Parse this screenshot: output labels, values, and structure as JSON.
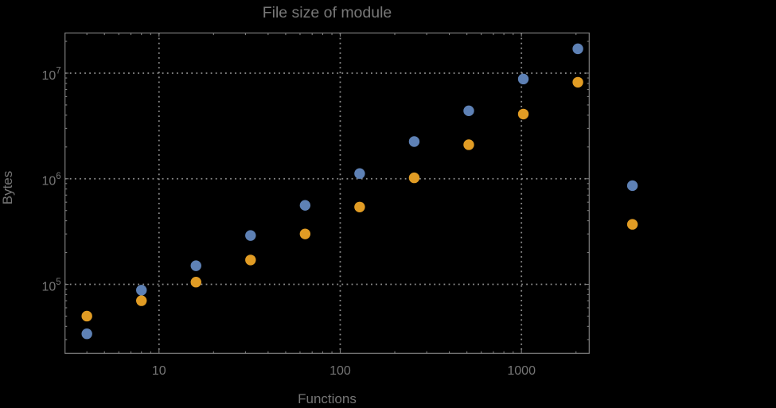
{
  "window": {
    "background": "#000000"
  },
  "chart_data": {
    "type": "scatter",
    "title": "File size of module",
    "xlabel": "Functions",
    "ylabel": "Bytes",
    "x_scale": "log",
    "y_scale": "log",
    "grid": "dotted",
    "legend": "none",
    "x": [
      4,
      8,
      16,
      32,
      64,
      128,
      256,
      512,
      1024,
      2048,
      4096
    ],
    "series": [
      {
        "name": "series-1-blue",
        "color": "#5E81B5",
        "values": [
          34000,
          88000,
          150000,
          290000,
          560000,
          1120000,
          2250000,
          4400000,
          8800000,
          17000000,
          860000
        ]
      },
      {
        "name": "series-2-orange",
        "color": "#E19C24",
        "values": [
          50000,
          70000,
          105000,
          170000,
          300000,
          540000,
          1020000,
          2100000,
          4100000,
          8200000,
          370000
        ]
      }
    ],
    "x_ticks": [
      {
        "v": 10,
        "label": "10"
      },
      {
        "v": 100,
        "label": "100"
      },
      {
        "v": 1000,
        "label": "1000"
      }
    ],
    "y_ticks": [
      {
        "v": 100000,
        "base": "10",
        "exp": "5"
      },
      {
        "v": 1000000,
        "base": "10",
        "exp": "6"
      },
      {
        "v": 10000000,
        "base": "10",
        "exp": "7"
      }
    ],
    "xlim": [
      3.03,
      2365
    ],
    "ylim": [
      22200,
      24000000
    ],
    "style": {
      "frame_color": "#7e7e7e",
      "grid_color": "#8d8d8d",
      "text_color": "#757575",
      "marker_radius": 6.7
    }
  }
}
